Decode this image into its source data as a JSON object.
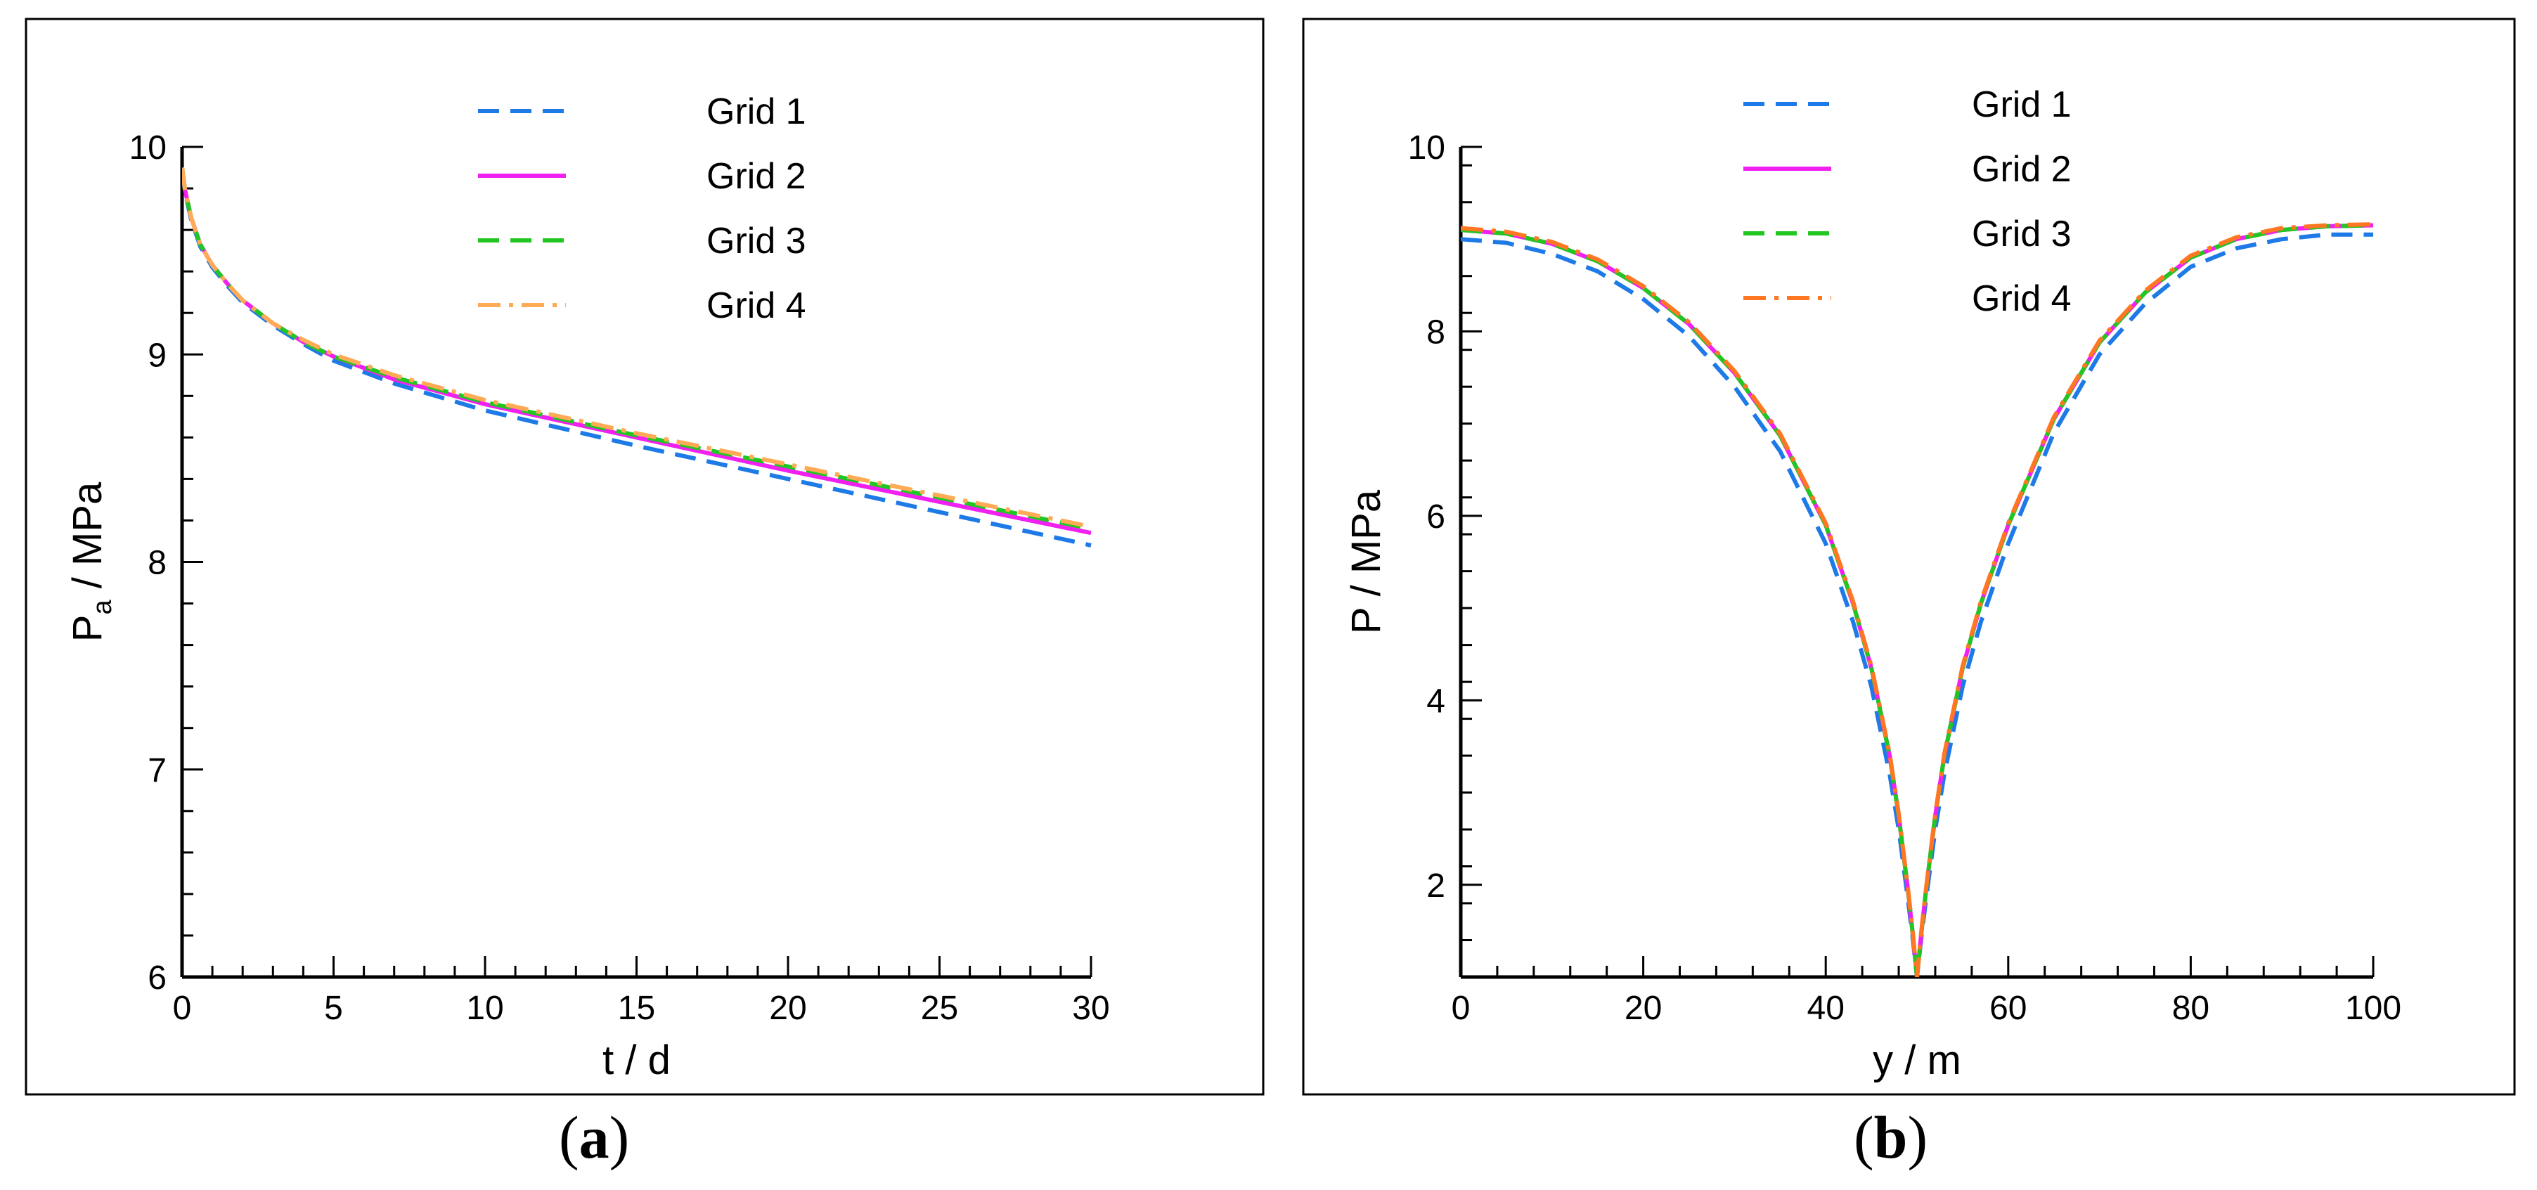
{
  "chart_data": [
    {
      "id": "a",
      "type": "line",
      "caption": "a",
      "xlabel": "t / d",
      "ylabel_main": "P",
      "ylabel_sub": "a",
      "ylabel_unit": " / MPa",
      "xlim": [
        0,
        30
      ],
      "ylim": [
        6,
        10
      ],
      "xticks": [
        0,
        5,
        10,
        15,
        20,
        25,
        30
      ],
      "yticks": [
        6,
        7,
        8,
        9,
        10
      ],
      "x_minor_step": 1,
      "y_minor_step": 0.2,
      "legend_position": "top-center",
      "series": [
        {
          "name": "Grid 1",
          "color": "#1e7ae6",
          "style": "dash",
          "x": [
            0,
            0.1,
            0.3,
            0.6,
            1,
            1.5,
            2,
            3,
            4,
            5,
            7,
            10,
            15,
            20,
            25,
            30
          ],
          "y": [
            9.9,
            9.78,
            9.65,
            9.52,
            9.42,
            9.33,
            9.25,
            9.14,
            9.05,
            8.97,
            8.86,
            8.73,
            8.56,
            8.4,
            8.24,
            8.08
          ]
        },
        {
          "name": "Grid 2",
          "color": "#f020f0",
          "style": "solid",
          "x": [
            0,
            0.1,
            0.3,
            0.6,
            1,
            1.5,
            2,
            3,
            4,
            5,
            7,
            10,
            15,
            20,
            25,
            30
          ],
          "y": [
            9.9,
            9.79,
            9.66,
            9.53,
            9.43,
            9.34,
            9.26,
            9.15,
            9.06,
            8.99,
            8.88,
            8.76,
            8.6,
            8.44,
            8.29,
            8.14
          ]
        },
        {
          "name": "Grid 3",
          "color": "#22c622",
          "style": "dash",
          "x": [
            0,
            0.1,
            0.3,
            0.6,
            1,
            1.5,
            2,
            3,
            4,
            5,
            7,
            10,
            15,
            20,
            25,
            30
          ],
          "y": [
            9.9,
            9.79,
            9.66,
            9.53,
            9.43,
            9.34,
            9.26,
            9.15,
            9.06,
            8.99,
            8.89,
            8.77,
            8.61,
            8.46,
            8.31,
            8.16
          ]
        },
        {
          "name": "Grid 4",
          "color": "#ffaa55",
          "style": "dashdot",
          "x": [
            0,
            0.1,
            0.3,
            0.6,
            1,
            1.5,
            2,
            3,
            4,
            5,
            7,
            10,
            15,
            20,
            25,
            30
          ],
          "y": [
            9.9,
            9.79,
            9.66,
            9.53,
            9.43,
            9.34,
            9.26,
            9.15,
            9.07,
            9.0,
            8.9,
            8.78,
            8.62,
            8.47,
            8.32,
            8.17
          ]
        }
      ]
    },
    {
      "id": "b",
      "type": "line",
      "caption": "b",
      "xlabel": "y  / m",
      "ylabel_main": "P",
      "ylabel_sub": "",
      "ylabel_unit": " / MPa",
      "xlim": [
        0,
        100
      ],
      "ylim": [
        1,
        10
      ],
      "xticks": [
        0,
        20,
        40,
        60,
        80,
        100
      ],
      "yticks": [
        2,
        4,
        6,
        8,
        10
      ],
      "x_minor_step": 4,
      "y_minor_step": 0.4,
      "legend_position": "top-center",
      "series": [
        {
          "name": "Grid 1",
          "color": "#1e7ae6",
          "style": "dash",
          "x": [
            0,
            5,
            10,
            15,
            20,
            25,
            30,
            35,
            40,
            43,
            45,
            47,
            48,
            49,
            49.5,
            50,
            50.5,
            51,
            52,
            53,
            55,
            57,
            60,
            65,
            70,
            75,
            80,
            85,
            90,
            95,
            100
          ],
          "y": [
            9.0,
            8.96,
            8.84,
            8.65,
            8.35,
            7.95,
            7.4,
            6.7,
            5.7,
            4.85,
            4.15,
            3.2,
            2.6,
            1.85,
            1.45,
            1.0,
            1.45,
            1.85,
            2.6,
            3.2,
            4.15,
            4.85,
            5.7,
            6.9,
            7.75,
            8.3,
            8.7,
            8.9,
            9.0,
            9.05,
            9.05
          ]
        },
        {
          "name": "Grid 2",
          "color": "#f020f0",
          "style": "solid",
          "x": [
            0,
            5,
            10,
            15,
            20,
            25,
            30,
            35,
            40,
            43,
            45,
            47,
            48,
            49,
            49.5,
            50,
            50.5,
            51,
            52,
            53,
            55,
            57,
            60,
            65,
            70,
            75,
            80,
            85,
            90,
            95,
            100
          ],
          "y": [
            9.1,
            9.06,
            8.95,
            8.76,
            8.47,
            8.08,
            7.55,
            6.87,
            5.9,
            5.05,
            4.35,
            3.4,
            2.75,
            1.95,
            1.5,
            1.0,
            1.5,
            1.95,
            2.75,
            3.4,
            4.35,
            5.05,
            5.9,
            7.05,
            7.88,
            8.42,
            8.8,
            9.0,
            9.1,
            9.14,
            9.15
          ]
        },
        {
          "name": "Grid 3",
          "color": "#22c622",
          "style": "dash",
          "x": [
            0,
            5,
            10,
            15,
            20,
            25,
            30,
            35,
            40,
            43,
            45,
            47,
            48,
            49,
            49.5,
            50,
            50.5,
            51,
            52,
            53,
            55,
            57,
            60,
            65,
            70,
            75,
            80,
            85,
            90,
            95,
            100
          ],
          "y": [
            9.1,
            9.06,
            8.95,
            8.76,
            8.47,
            8.08,
            7.55,
            6.87,
            5.9,
            5.05,
            4.35,
            3.4,
            2.75,
            1.95,
            1.5,
            1.0,
            1.5,
            1.95,
            2.75,
            3.4,
            4.35,
            5.05,
            5.9,
            7.05,
            7.88,
            8.42,
            8.8,
            9.0,
            9.1,
            9.14,
            9.15
          ]
        },
        {
          "name": "Grid 4",
          "color": "#ff7722",
          "style": "dashdot",
          "x": [
            0,
            5,
            10,
            15,
            20,
            25,
            30,
            35,
            40,
            43,
            45,
            47,
            48,
            49,
            49.5,
            50,
            50.5,
            51,
            52,
            53,
            55,
            57,
            60,
            65,
            70,
            75,
            80,
            85,
            90,
            95,
            100
          ],
          "y": [
            9.12,
            9.08,
            8.97,
            8.78,
            8.49,
            8.1,
            7.57,
            6.89,
            5.92,
            5.07,
            4.37,
            3.42,
            2.77,
            1.97,
            1.52,
            1.0,
            1.52,
            1.97,
            2.77,
            3.42,
            4.37,
            5.07,
            5.92,
            7.07,
            7.9,
            8.44,
            8.82,
            9.02,
            9.12,
            9.15,
            9.16
          ]
        }
      ]
    }
  ]
}
